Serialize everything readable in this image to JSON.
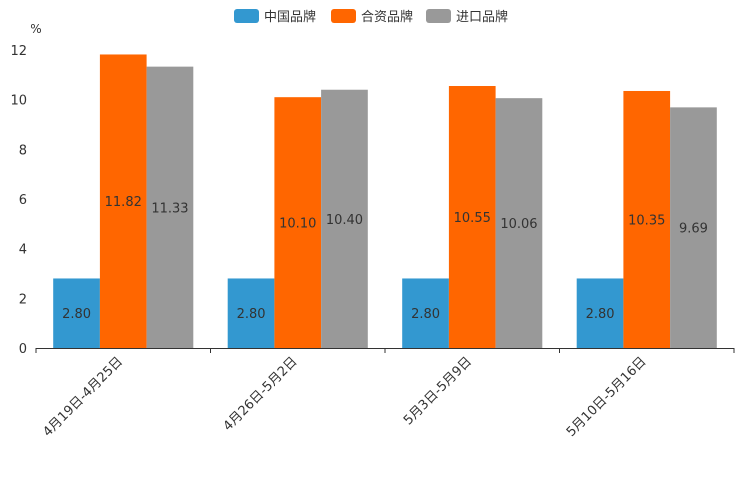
{
  "chart_data": {
    "type": "bar",
    "title": "",
    "unit": "%",
    "xlabel": "",
    "ylabel": "%",
    "ylim": [
      0,
      12
    ],
    "yticks": [
      "0",
      "2",
      "4",
      "6",
      "8",
      "10",
      "12"
    ],
    "grid": false,
    "legend_position": "top-center",
    "categories": [
      "4月19日-4月25日",
      "4月26日-5月2日",
      "5月3日-5月9日",
      "5月10日-5月16日"
    ],
    "series": [
      {
        "name": "中国品牌",
        "color": "#3398d0",
        "values": [
          2.8,
          2.8,
          2.8,
          2.8
        ],
        "labels": [
          "2.80",
          "2.80",
          "2.80",
          "2.80"
        ]
      },
      {
        "name": "合资品牌",
        "color": "#ff6600",
        "values": [
          11.82,
          10.1,
          10.55,
          10.35
        ],
        "labels": [
          "11.82",
          "10.10",
          "10.55",
          "10.35"
        ]
      },
      {
        "name": "进口品牌",
        "color": "#999999",
        "values": [
          11.33,
          10.4,
          10.06,
          9.69
        ],
        "labels": [
          "11.33",
          "10.40",
          "10.06",
          "9.69"
        ]
      }
    ]
  }
}
